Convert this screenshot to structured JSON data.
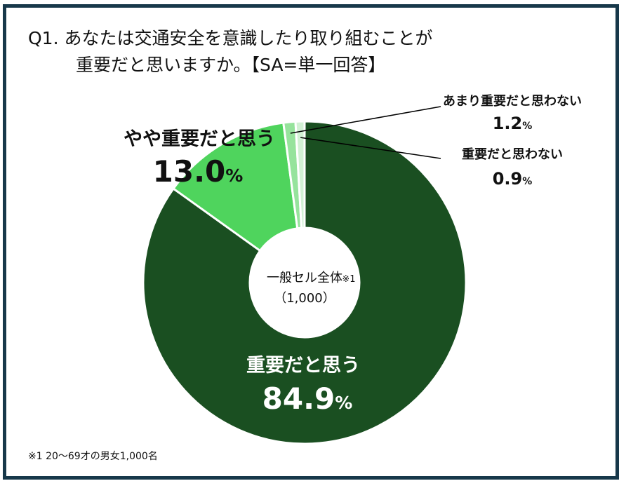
{
  "title": {
    "line1": "Q1. あなたは交通安全を意識したり取り組むことが",
    "line2": "重要だと思いますか。【SA=単一回答】"
  },
  "chart_data": {
    "type": "pie",
    "categories": [
      "重要だと思う",
      "やや重要だと思う",
      "あまり重要だと思わない",
      "重要だと思わない"
    ],
    "values": [
      84.9,
      13.0,
      1.2,
      0.9
    ],
    "value_labels": [
      "84.9",
      "13.0",
      "1.2",
      "0.9"
    ],
    "unit": "%",
    "colors": [
      "#1a4f21",
      "#4fd45d",
      "#96e39c",
      "#d2f1d4"
    ],
    "center_label": "一般セル全体",
    "center_note": "※1",
    "center_count": "（1,000）"
  },
  "footnote": "※1 20～69才の男女1,000名"
}
